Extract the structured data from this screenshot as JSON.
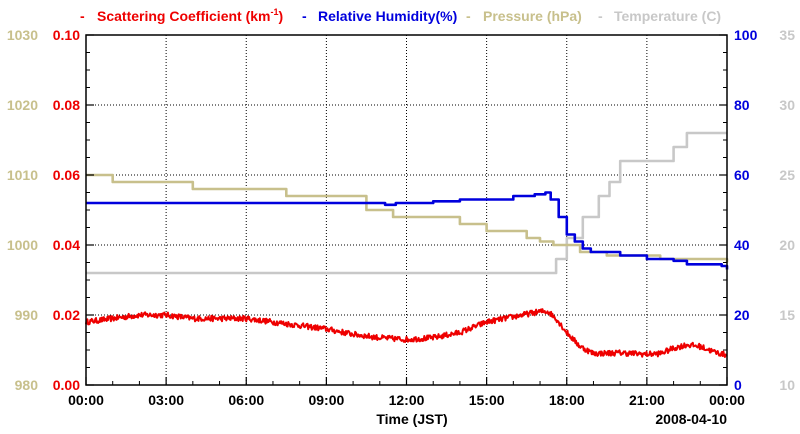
{
  "chart_data": {
    "type": "line",
    "title": "",
    "legend": [
      {
        "id": "scat",
        "text": "Scattering Coefficient (km",
        "sup": "-1",
        "tail": ")",
        "color": "#ee0000"
      },
      {
        "id": "rh",
        "text": "Relative Humidity(%)",
        "color": "#0000dd"
      },
      {
        "id": "press",
        "text": "Pressure (hPa)",
        "color": "#c8c08c"
      },
      {
        "id": "temp",
        "text": "Temperature (C)",
        "color": "#c8c8c8"
      }
    ],
    "legend_marker": "-",
    "xlabel": "Time (JST)",
    "date_label": "2008-04-10",
    "x_unit": "hours",
    "xlim": [
      0,
      24
    ],
    "x_ticks": [
      0,
      3,
      6,
      9,
      12,
      15,
      18,
      21,
      24
    ],
    "x_tick_labels": [
      "00:00",
      "03:00",
      "06:00",
      "09:00",
      "12:00",
      "15:00",
      "18:00",
      "21:00",
      "00:00"
    ],
    "axes": {
      "pressure": {
        "side": "left-outer",
        "color": "#c8c08c",
        "range": [
          980,
          1030
        ],
        "ticks": [
          "980",
          "990",
          "1000",
          "1010",
          "1020",
          "1030"
        ]
      },
      "scattering": {
        "side": "left-inner",
        "color": "#ee0000",
        "range": [
          0,
          0.1
        ],
        "ticks": [
          "0.00",
          "0.02",
          "0.04",
          "0.06",
          "0.08",
          "0.10"
        ]
      },
      "humidity": {
        "side": "right-inner",
        "color": "#0000dd",
        "range": [
          0,
          100
        ],
        "ticks": [
          "0",
          "20",
          "40",
          "60",
          "80",
          "100"
        ]
      },
      "temperature": {
        "side": "right-outer",
        "color": "#c8c8c8",
        "range": [
          10,
          35
        ],
        "ticks": [
          "10",
          "15",
          "20",
          "25",
          "30",
          "35"
        ]
      }
    },
    "grid": true,
    "series": [
      {
        "name": "Scattering Coefficient",
        "axis": "scattering",
        "color": "#ee0000",
        "style": "noisy",
        "x": [
          0,
          1,
          2,
          3,
          4,
          5,
          6,
          7,
          8,
          9,
          10,
          11,
          12,
          13,
          14,
          15,
          16,
          17,
          17.3,
          17.6,
          18,
          18.5,
          19,
          20,
          21,
          21.5,
          22,
          22.5,
          23,
          23.5,
          24
        ],
        "y": [
          0.018,
          0.019,
          0.02,
          0.02,
          0.019,
          0.019,
          0.019,
          0.018,
          0.017,
          0.016,
          0.0145,
          0.0135,
          0.013,
          0.0135,
          0.015,
          0.018,
          0.0195,
          0.021,
          0.021,
          0.019,
          0.015,
          0.011,
          0.009,
          0.0092,
          0.0088,
          0.009,
          0.0105,
          0.0115,
          0.011,
          0.0095,
          0.0085
        ]
      },
      {
        "name": "Relative Humidity",
        "axis": "humidity",
        "color": "#0000dd",
        "style": "step",
        "x": [
          0,
          10.5,
          11.2,
          11.6,
          12.2,
          13.0,
          14.0,
          15.0,
          16.0,
          16.8,
          17.2,
          17.4,
          17.7,
          18.0,
          18.3,
          18.6,
          18.9,
          19.4,
          20.0,
          21.0,
          22.0,
          22.5,
          23.0,
          23.8,
          24
        ],
        "y": [
          52,
          52,
          51.5,
          52,
          52,
          52.5,
          53,
          53,
          54,
          54.5,
          55,
          53,
          48,
          43,
          41,
          39,
          38,
          38,
          37,
          36,
          35.5,
          34.5,
          34.5,
          34,
          33
        ]
      },
      {
        "name": "Pressure",
        "axis": "pressure",
        "color": "#c8c08c",
        "style": "step",
        "x": [
          0,
          1.0,
          2.3,
          4.0,
          6.0,
          7.5,
          10.5,
          11.5,
          12.5,
          14.0,
          15.0,
          16.5,
          17.0,
          17.5,
          18.5,
          19.5,
          20.5,
          21.5,
          24
        ],
        "y": [
          1010,
          1009,
          1009,
          1008,
          1008,
          1007,
          1005,
          1004,
          1004,
          1003,
          1002,
          1001,
          1000.5,
          1000,
          999,
          998.5,
          998.5,
          998,
          997.5
        ]
      },
      {
        "name": "Temperature",
        "axis": "temperature",
        "color": "#c8c8c8",
        "style": "step",
        "x": [
          0,
          17.3,
          17.6,
          18.0,
          18.6,
          19.2,
          19.6,
          20.0,
          21.0,
          22.0,
          22.5,
          24
        ],
        "y": [
          18,
          18,
          19,
          20.5,
          22,
          23.5,
          24.5,
          26,
          26,
          27,
          28,
          28
        ]
      }
    ]
  }
}
